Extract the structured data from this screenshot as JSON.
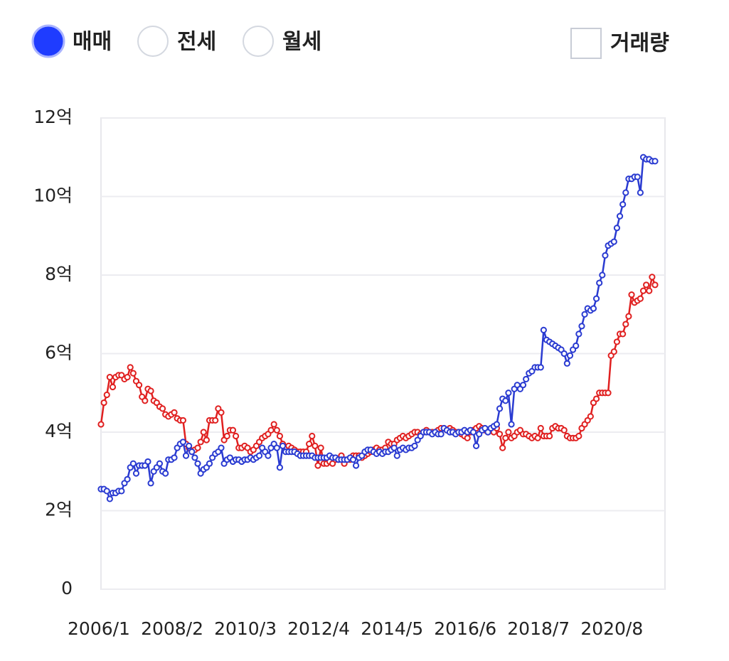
{
  "controls": {
    "options": [
      {
        "label": "매매",
        "selected": true
      },
      {
        "label": "전세",
        "selected": false
      },
      {
        "label": "월세",
        "selected": false
      }
    ],
    "checkbox": {
      "label": "거래량",
      "checked": false
    }
  },
  "chart_data": {
    "type": "line",
    "categories": [
      "2006/1",
      null,
      null,
      null,
      null,
      null,
      null,
      null,
      null,
      null,
      null,
      null,
      null,
      null,
      null,
      null,
      null,
      null,
      null,
      null,
      null,
      null,
      null,
      null,
      null,
      "2008/2",
      null,
      null,
      null,
      null,
      null,
      null,
      null,
      null,
      null,
      null,
      null,
      null,
      null,
      null,
      null,
      null,
      null,
      null,
      null,
      null,
      null,
      null,
      null,
      null,
      "2010/3",
      null,
      null,
      null,
      null,
      null,
      null,
      null,
      null,
      null,
      null,
      null,
      null,
      null,
      null,
      null,
      null,
      null,
      null,
      null,
      null,
      null,
      null,
      null,
      null,
      "2012/4",
      null,
      null,
      null,
      null,
      null,
      null,
      null,
      null,
      null,
      null,
      null,
      null,
      null,
      null,
      null,
      null,
      null,
      null,
      null,
      null,
      null,
      null,
      null,
      null,
      "2014/5",
      null,
      null,
      null,
      null,
      null,
      null,
      null,
      null,
      null,
      null,
      null,
      null,
      null,
      null,
      null,
      null,
      null,
      null,
      null,
      null,
      null,
      null,
      null,
      null,
      "2016/6",
      null,
      null,
      null,
      null,
      null,
      null,
      null,
      null,
      null,
      null,
      null,
      null,
      null,
      null,
      null,
      null,
      null,
      null,
      null,
      null,
      null,
      null,
      null,
      null,
      "2018/7",
      null,
      null,
      null,
      null,
      null,
      null,
      null,
      null,
      null,
      null,
      null,
      null,
      null,
      null,
      null,
      null,
      null,
      null,
      null,
      null,
      null,
      null,
      null,
      null,
      "2020/8",
      null,
      null,
      null,
      null,
      null,
      null,
      null,
      null,
      null,
      null,
      null,
      null,
      null,
      null
    ],
    "series": [
      {
        "color": "#e02020",
        "values": [
          4.2,
          4.75,
          4.95,
          5.4,
          5.15,
          5.4,
          5.45,
          5.45,
          5.35,
          5.4,
          5.65,
          5.5,
          5.3,
          5.2,
          4.9,
          4.8,
          5.1,
          5.05,
          4.8,
          4.75,
          4.65,
          4.6,
          4.45,
          4.4,
          4.45,
          4.5,
          4.35,
          4.3,
          4.3,
          3.7,
          3.6,
          3.5,
          3.55,
          3.6,
          3.75,
          4.0,
          3.8,
          4.3,
          4.3,
          4.3,
          4.6,
          4.5,
          3.8,
          3.9,
          4.05,
          4.05,
          3.9,
          3.6,
          3.6,
          3.65,
          3.6,
          3.5,
          3.55,
          3.65,
          3.75,
          3.85,
          3.9,
          3.95,
          4.05,
          4.2,
          4.05,
          3.9,
          3.7,
          3.6,
          3.65,
          3.6,
          3.55,
          3.5,
          3.5,
          3.5,
          3.5,
          3.7,
          3.9,
          3.65,
          3.15,
          3.6,
          3.2,
          3.2,
          3.25,
          3.2,
          3.3,
          3.3,
          3.4,
          3.2,
          3.3,
          3.3,
          3.4,
          3.4,
          3.4,
          3.35,
          3.4,
          3.45,
          3.5,
          3.55,
          3.6,
          3.55,
          3.55,
          3.6,
          3.75,
          3.7,
          3.7,
          3.8,
          3.85,
          3.9,
          3.85,
          3.9,
          3.95,
          4.0,
          4.0,
          3.95,
          4.0,
          4.05,
          4.0,
          4.0,
          4.0,
          4.05,
          4.1,
          4.1,
          4.05,
          4.1,
          4.05,
          4.0,
          4.0,
          3.95,
          3.9,
          3.85,
          4.0,
          4.05,
          4.1,
          4.15,
          4.1,
          4.05,
          4.0,
          4.05,
          4.0,
          4.1,
          3.95,
          3.6,
          3.85,
          4.0,
          3.85,
          3.9,
          4.0,
          4.05,
          3.95,
          3.95,
          3.9,
          3.85,
          3.9,
          3.85,
          4.1,
          3.9,
          3.9,
          3.9,
          4.1,
          4.15,
          4.1,
          4.1,
          4.05,
          3.9,
          3.85,
          3.85,
          3.85,
          3.9,
          4.1,
          4.2,
          4.3,
          4.4,
          4.75,
          4.85,
          5.0,
          5.0,
          5.0,
          5.0,
          5.95,
          6.05,
          6.3,
          6.5,
          6.5,
          6.75,
          6.95,
          7.5,
          7.3,
          7.35,
          7.4,
          7.6,
          7.75,
          7.6,
          7.95,
          7.75
        ]
      },
      {
        "color": "#2a3bd1",
        "values": [
          2.55,
          2.55,
          2.5,
          2.3,
          2.45,
          2.45,
          2.5,
          2.5,
          2.7,
          2.8,
          3.1,
          3.2,
          2.95,
          3.15,
          3.15,
          3.15,
          3.25,
          2.7,
          3.0,
          3.1,
          3.2,
          3.0,
          2.95,
          3.3,
          3.3,
          3.35,
          3.6,
          3.7,
          3.75,
          3.4,
          3.65,
          3.5,
          3.35,
          3.2,
          2.95,
          3.05,
          3.1,
          3.2,
          3.35,
          3.45,
          3.5,
          3.6,
          3.2,
          3.3,
          3.35,
          3.25,
          3.3,
          3.3,
          3.25,
          3.3,
          3.3,
          3.35,
          3.3,
          3.35,
          3.4,
          3.6,
          3.5,
          3.4,
          3.6,
          3.7,
          3.6,
          3.1,
          3.65,
          3.5,
          3.5,
          3.5,
          3.5,
          3.45,
          3.4,
          3.4,
          3.4,
          3.4,
          3.4,
          3.35,
          3.35,
          3.35,
          3.35,
          3.35,
          3.4,
          3.35,
          3.35,
          3.3,
          3.3,
          3.3,
          3.3,
          3.35,
          3.3,
          3.15,
          3.35,
          3.4,
          3.5,
          3.55,
          3.55,
          3.5,
          3.45,
          3.5,
          3.45,
          3.5,
          3.5,
          3.55,
          3.6,
          3.4,
          3.55,
          3.6,
          3.55,
          3.6,
          3.6,
          3.65,
          3.8,
          3.9,
          4.0,
          4.0,
          4.0,
          3.95,
          4.0,
          3.95,
          3.95,
          4.1,
          4.05,
          4.0,
          4.0,
          3.95,
          4.0,
          4.0,
          4.05,
          4.0,
          4.05,
          4.0,
          3.65,
          3.95,
          4.05,
          4.1,
          4.0,
          4.1,
          4.15,
          4.2,
          4.6,
          4.85,
          4.8,
          5.0,
          4.2,
          5.1,
          5.2,
          5.1,
          5.2,
          5.35,
          5.5,
          5.55,
          5.65,
          5.65,
          5.65,
          6.6,
          6.35,
          6.3,
          6.25,
          6.2,
          6.15,
          6.1,
          6.0,
          5.75,
          5.95,
          6.1,
          6.2,
          6.5,
          6.7,
          7.0,
          7.15,
          7.1,
          7.15,
          7.4,
          7.8,
          8.0,
          8.5,
          8.75,
          8.8,
          8.85,
          9.2,
          9.5,
          9.8,
          10.1,
          10.45,
          10.45,
          10.5,
          10.5,
          10.1,
          11.0,
          10.95,
          10.95,
          10.9,
          10.9
        ]
      }
    ],
    "ylim": [
      0,
      12
    ],
    "yticks": [
      0,
      {
        "value": 2,
        "label": "2억"
      },
      {
        "value": 4,
        "label": "4억"
      },
      {
        "value": 6,
        "label": "6억"
      },
      {
        "value": 8,
        "label": "8억"
      },
      {
        "value": 10,
        "label": "10억"
      },
      {
        "value": 12,
        "label": "12억"
      }
    ],
    "grid": true
  }
}
